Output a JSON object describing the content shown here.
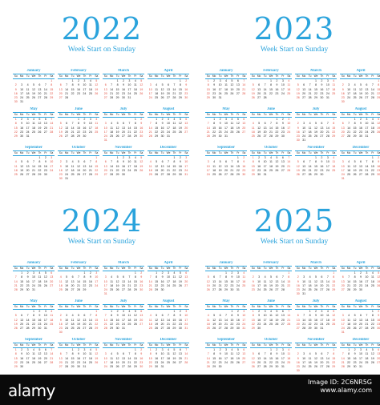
{
  "subtitle": "Week Start on Sunday",
  "weekdays": [
    "Su",
    "Mo",
    "Tu",
    "We",
    "Th",
    "Fr",
    "Sa"
  ],
  "months": [
    "January",
    "February",
    "March",
    "April",
    "May",
    "June",
    "July",
    "August",
    "September",
    "October",
    "November",
    "December"
  ],
  "calendars": [
    {
      "year": "2022"
    },
    {
      "year": "2023"
    },
    {
      "year": "2024"
    },
    {
      "year": "2025"
    }
  ],
  "colors": {
    "accent": "#2aa3dc",
    "weekend": "#e04a3b",
    "text": "#222222"
  },
  "watermark": {
    "logo": "alamy",
    "image_id_label": "Image ID: 2C6NR5G",
    "site": "www.alamy.com"
  }
}
